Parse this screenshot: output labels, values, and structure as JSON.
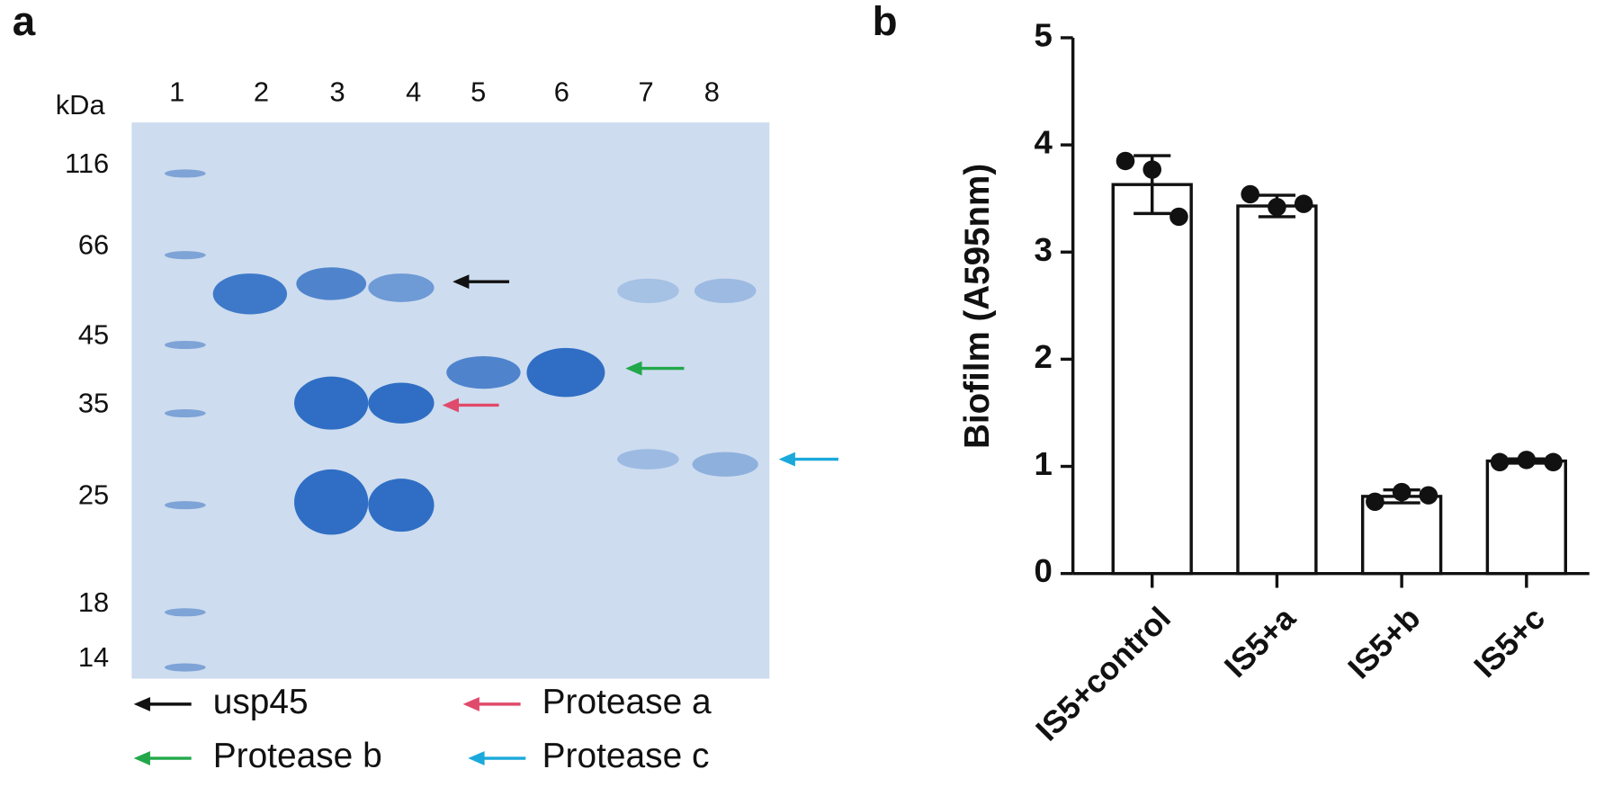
{
  "gel": {
    "panel_label": "a",
    "kda_label": "kDa",
    "lanes": [
      "1",
      "2",
      "3",
      "4",
      "5",
      "6",
      "7",
      "8"
    ],
    "markers": [
      "116",
      "66",
      "45",
      "35",
      "25",
      "18",
      "14"
    ],
    "legend": [
      "usp45",
      "Protease a",
      "Protease b",
      "Protease c"
    ]
  },
  "chart_data": {
    "type": "bar",
    "panel_label": "b",
    "y_label": "Biofilm (A595nm)",
    "categories": [
      "IS5+control",
      "IS5+a",
      "IS5+b",
      "IS5+c"
    ],
    "values": [
      3.63,
      3.43,
      0.72,
      1.05
    ],
    "errors": [
      0.27,
      0.1,
      0.06,
      0.02
    ],
    "points": [
      [
        3.85,
        3.77,
        3.33
      ],
      [
        3.54,
        3.42,
        3.45
      ],
      [
        0.67,
        0.76,
        0.73
      ],
      [
        1.04,
        1.06,
        1.04
      ]
    ],
    "color": "#ffffff",
    "ylim": [
      0,
      5
    ],
    "yticks": [
      0,
      1,
      2,
      3,
      4,
      5
    ]
  }
}
